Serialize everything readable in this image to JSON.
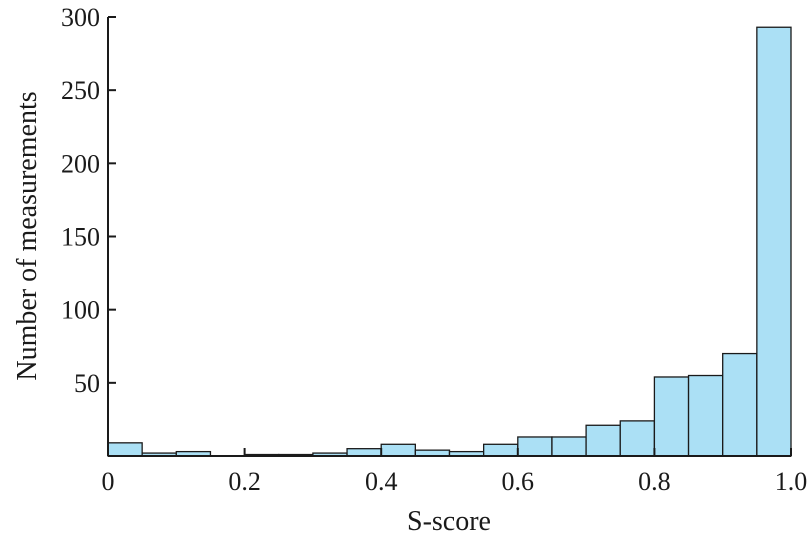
{
  "chart_data": {
    "type": "bar",
    "title": "",
    "xlabel": "S-score",
    "ylabel": "Number of measurements",
    "xlim": [
      0,
      1.0
    ],
    "ylim": [
      0,
      300
    ],
    "xticks": [
      "0",
      "0.2",
      "0.4",
      "0.6",
      "0.8",
      "1.0"
    ],
    "yticks": [
      "50",
      "100",
      "150",
      "200",
      "250",
      "300"
    ],
    "bin_width": 0.05,
    "bin_starts": [
      0,
      0.05,
      0.1,
      0.15,
      0.2,
      0.25,
      0.3,
      0.35,
      0.4,
      0.45,
      0.5,
      0.55,
      0.6,
      0.65,
      0.7,
      0.75,
      0.8,
      0.85,
      0.9,
      0.95
    ],
    "values": [
      9,
      2,
      3,
      0,
      1,
      1,
      2,
      5,
      8,
      4,
      3,
      8,
      13,
      13,
      21,
      24,
      54,
      55,
      70,
      293
    ],
    "grid": false,
    "colors": {
      "bar_fill": "#abe0f5",
      "bar_edge": "#1a1a1a"
    }
  }
}
